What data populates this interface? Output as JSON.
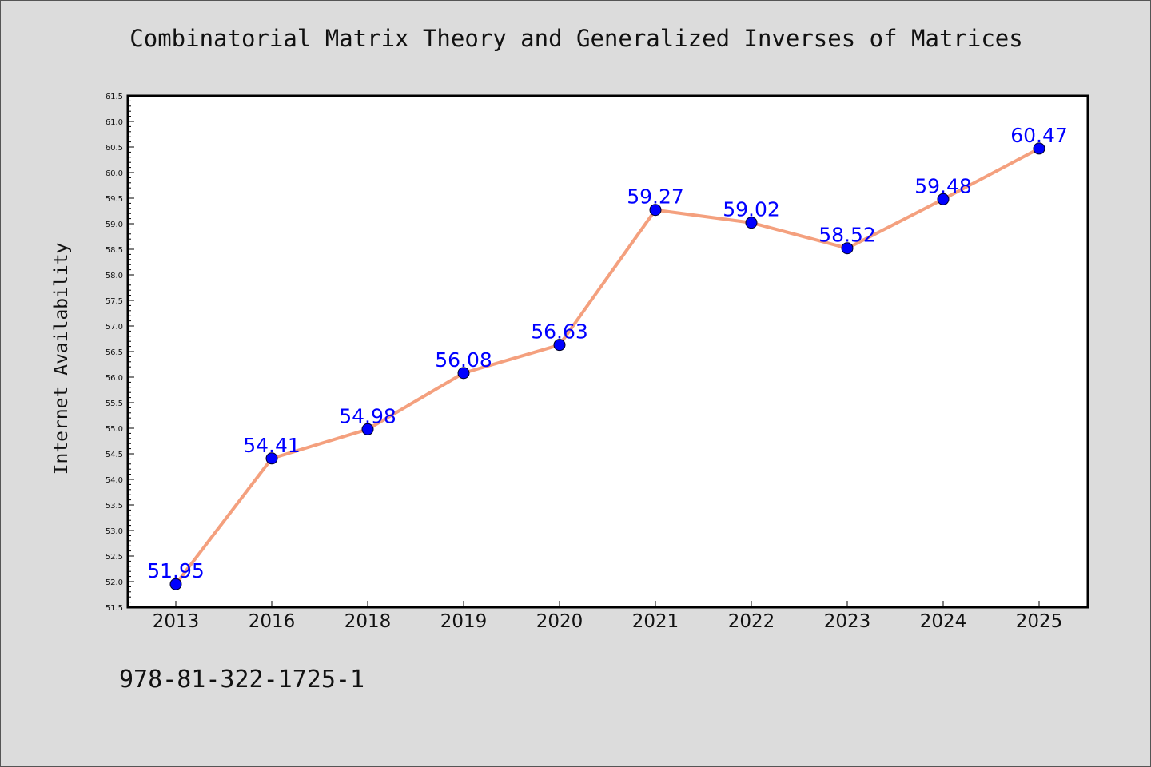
{
  "chart_data": {
    "type": "line",
    "title": "Combinatorial Matrix Theory and Generalized Inverses of Matrices",
    "ylabel": "Internet Availability",
    "xlabel": "",
    "categories": [
      "2013",
      "2016",
      "2018",
      "2019",
      "2020",
      "2021",
      "2022",
      "2023",
      "2024",
      "2025"
    ],
    "values": [
      51.95,
      54.41,
      54.98,
      56.08,
      56.63,
      59.27,
      59.02,
      58.52,
      59.48,
      60.47
    ],
    "data_labels": [
      "51.95",
      "54.41",
      "54.98",
      "56.08",
      "56.63",
      "59.27",
      "59.02",
      "58.52",
      "59.48",
      "60.47"
    ],
    "ylim": [
      51.5,
      61.5
    ],
    "yticks": [
      "51.5",
      "52.0",
      "52.5",
      "53.0",
      "53.5",
      "54.0",
      "54.5",
      "55.0",
      "55.5",
      "56.0",
      "56.5",
      "57.0",
      "57.5",
      "58.0",
      "58.5",
      "59.0",
      "59.5",
      "60.0",
      "60.5",
      "61.0",
      "61.5"
    ],
    "grid": false,
    "legend": "none",
    "line_color": "#f4a07e",
    "marker_color": "#0000ff",
    "label_color": "#0000ff"
  },
  "footer": {
    "isbn": "978-81-322-1725-1"
  },
  "colors": {
    "background": "#dcdcdc",
    "plot_background": "#ffffff"
  }
}
